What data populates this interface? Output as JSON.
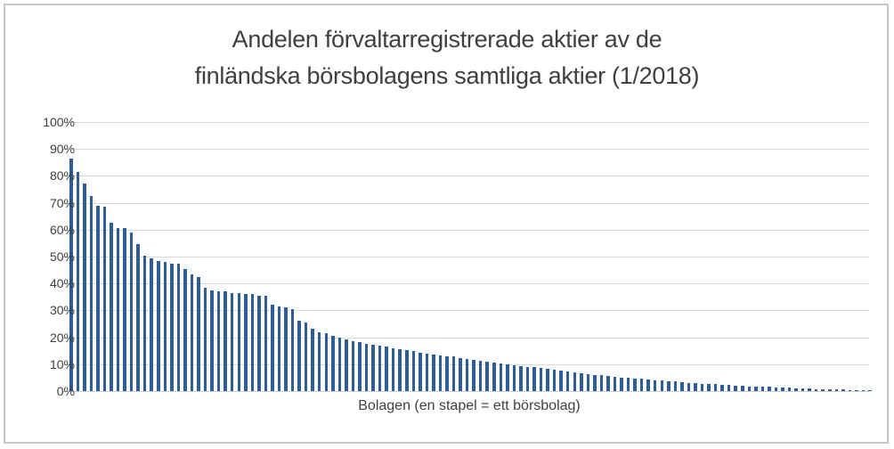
{
  "window": {
    "background_color": "#ffffff",
    "border_color": "#c6c6c6"
  },
  "chart_data": {
    "type": "bar",
    "title_line1": "Andelen förvaltarregistrerade aktier av de",
    "title_line2": "finländska börsbolagens samtliga aktier (1/2018)",
    "xlabel": "Bolagen (en stapel = ett börsbolag)",
    "ylabel": "",
    "ylim": [
      0,
      100
    ],
    "grid": true,
    "legend": false,
    "bar_color": "#2e5c99",
    "gridline_color": "#d9d9d9",
    "text_color": "#3f3f3f",
    "yticks": [
      0,
      10,
      20,
      30,
      40,
      50,
      60,
      70,
      80,
      90,
      100
    ],
    "ytick_labels": [
      "0%",
      "10%",
      "20%",
      "30%",
      "40%",
      "50%",
      "60%",
      "70%",
      "80%",
      "90%",
      "100%"
    ],
    "values": [
      86.5,
      81.5,
      77,
      72.5,
      69,
      68.5,
      62.5,
      60.5,
      60.5,
      59,
      54.5,
      50.5,
      49.5,
      48.5,
      48,
      47.5,
      47.5,
      45.5,
      43.5,
      42.5,
      38.5,
      37.5,
      37,
      37,
      36.5,
      36.5,
      36,
      36,
      35.5,
      35.5,
      32,
      31.5,
      31,
      30.5,
      26,
      25.5,
      23.2,
      22,
      21.5,
      20.5,
      19.8,
      19.2,
      18.5,
      18.2,
      17.6,
      17.2,
      16.8,
      16.4,
      16,
      15.6,
      15.2,
      14.8,
      14.4,
      14,
      13.6,
      13.3,
      13,
      12.8,
      12.4,
      12,
      11.6,
      11.2,
      10.9,
      10.6,
      10.3,
      10,
      9.7,
      9.4,
      9.1,
      8.8,
      8.5,
      8.2,
      7.9,
      7.6,
      7.3,
      7,
      6.7,
      6.4,
      6.1,
      5.8,
      5.5,
      5.3,
      5.1,
      4.9,
      4.7,
      4.5,
      4.3,
      4.1,
      3.9,
      3.7,
      3.5,
      3.3,
      3.1,
      2.9,
      2.8,
      2.6,
      2.5,
      2.3,
      2.2,
      2.0,
      1.9,
      1.8,
      1.7,
      1.6,
      1.5,
      1.4,
      1.3,
      1.2,
      1.1,
      1.0,
      0.9,
      0.8,
      0.8,
      0.7,
      0.6,
      0.6,
      0.5,
      0.5,
      0.4,
      0.4
    ]
  }
}
